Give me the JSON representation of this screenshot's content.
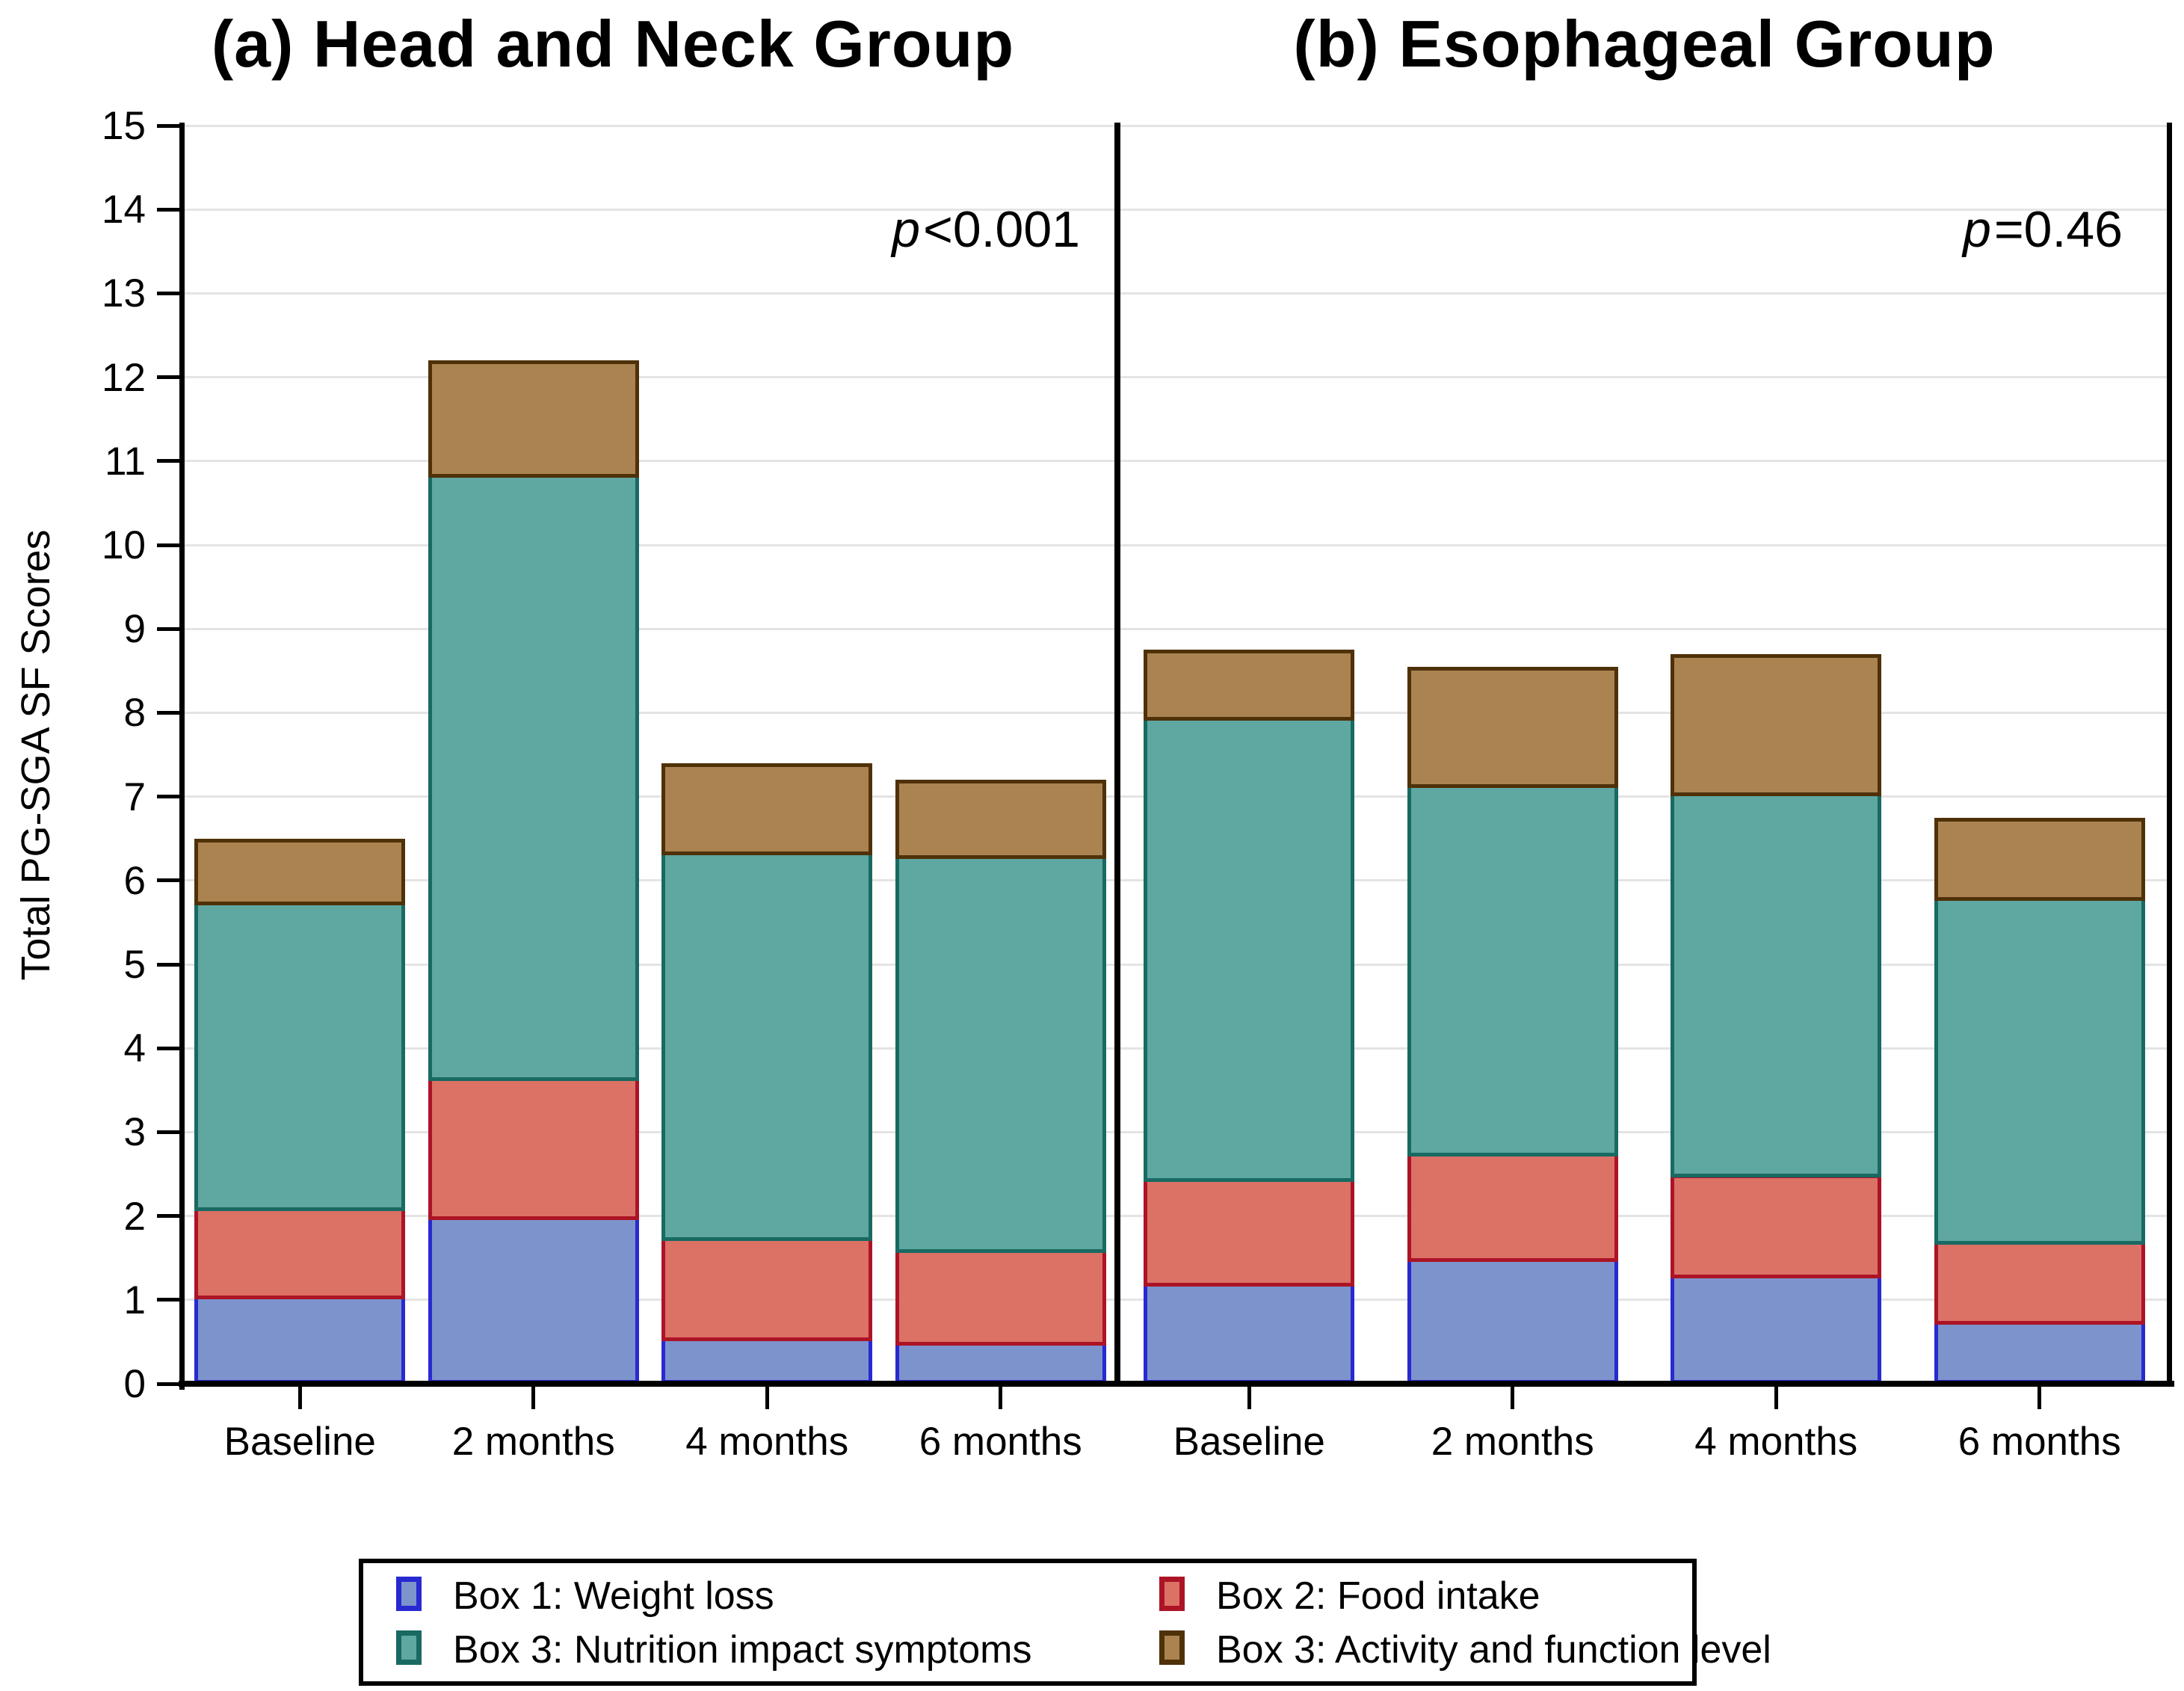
{
  "figure": {
    "y_axis_title": "Total PG-SGA SF Scores"
  },
  "colors": {
    "box1": {
      "fill": "#7C93CB",
      "border": "#2929D1"
    },
    "box2": {
      "fill": "#DC7166",
      "border": "#AC1426"
    },
    "box3_symptoms": {
      "fill": "#5FA7A1",
      "border": "#186A62"
    },
    "box3_activity": {
      "fill": "#AA8351",
      "border": "#4F3108"
    },
    "grid": "#E4E4E4",
    "axis": "#000000"
  },
  "legend": {
    "items": [
      {
        "label": "Box 1: Weight loss",
        "series_key": "box1"
      },
      {
        "label": "Box 2: Food intake",
        "series_key": "box2"
      },
      {
        "label": "Box 3: Nutrition impact symptoms",
        "series_key": "box3_symptoms"
      },
      {
        "label": "Box 3: Activity and function level",
        "series_key": "box3_activity"
      }
    ]
  },
  "chart_data": [
    {
      "type": "bar",
      "stacked": true,
      "panel": "a",
      "title": "(a) Head and Neck Group",
      "p_annotation": {
        "prefix": "p",
        "value": "<0.001"
      },
      "categories": [
        "Baseline",
        "2 months",
        "4 months",
        "6 months"
      ],
      "series": [
        {
          "name": "Box 1: Weight loss",
          "key": "box1",
          "values": [
            1.05,
            2.0,
            0.55,
            0.5
          ]
        },
        {
          "name": "Box 2: Food intake",
          "key": "box2",
          "values": [
            1.05,
            1.65,
            1.2,
            1.1
          ]
        },
        {
          "name": "Box 3: Nutrition impact symptoms",
          "key": "box3_symptoms",
          "values": [
            3.65,
            7.2,
            4.6,
            4.7
          ]
        },
        {
          "name": "Box 3: Activity and function level",
          "key": "box3_activity",
          "values": [
            0.75,
            1.35,
            1.05,
            0.9
          ]
        }
      ],
      "stack_totals": [
        6.5,
        12.2,
        7.4,
        7.2
      ],
      "ylabel": "Total PG-SGA SF Scores",
      "ylim": [
        0,
        15
      ],
      "ytick_step": 1,
      "grid": true,
      "legend_position": "bottom"
    },
    {
      "type": "bar",
      "stacked": true,
      "panel": "b",
      "title": "(b) Esophageal Group",
      "p_annotation": {
        "prefix": "p",
        "value": "=0.46"
      },
      "categories": [
        "Baseline",
        "2 months",
        "4 months",
        "6 months"
      ],
      "series": [
        {
          "name": "Box 1: Weight loss",
          "key": "box1",
          "values": [
            1.2,
            1.5,
            1.3,
            0.75
          ]
        },
        {
          "name": "Box 2: Food intake",
          "key": "box2",
          "values": [
            1.25,
            1.25,
            1.2,
            0.95
          ]
        },
        {
          "name": "Box 3: Nutrition impact symptoms",
          "key": "box3_symptoms",
          "values": [
            5.5,
            4.4,
            4.55,
            4.1
          ]
        },
        {
          "name": "Box 3: Activity and function level",
          "key": "box3_activity",
          "values": [
            0.8,
            1.4,
            1.65,
            0.95
          ]
        }
      ],
      "stack_totals": [
        8.75,
        8.55,
        8.7,
        6.75
      ],
      "ylabel": "Total PG-SGA SF Scores",
      "ylim": [
        0,
        15
      ],
      "ytick_step": 1,
      "grid": true,
      "legend_position": "bottom"
    }
  ]
}
